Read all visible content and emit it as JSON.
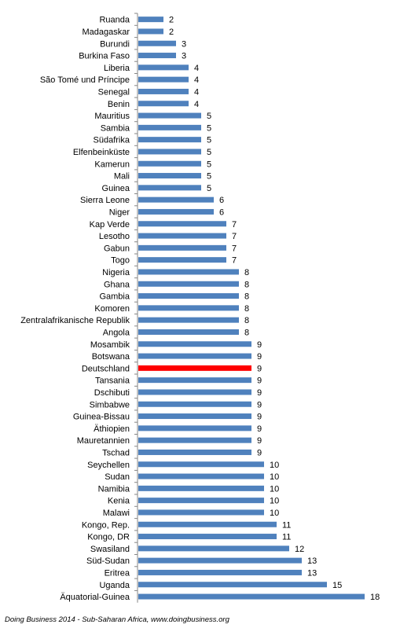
{
  "chart_data": {
    "type": "bar",
    "orientation": "horizontal",
    "title": "",
    "xlabel": "",
    "ylabel": "",
    "grid": false,
    "legend": "none",
    "xlim": [
      0,
      18
    ],
    "categories": [
      "Ruanda",
      "Madagaskar",
      "Burundi",
      "Burkina Faso",
      "Liberia",
      "São Tomé und Príncipe",
      "Senegal",
      "Benin",
      "Mauritius",
      "Sambia",
      "Südafrika",
      "Elfenbeinküste",
      "Kamerun",
      "Mali",
      "Guinea",
      "Sierra Leone",
      "Niger",
      "Kap Verde",
      "Lesotho",
      "Gabun",
      "Togo",
      "Nigeria",
      "Ghana",
      "Gambia",
      "Komoren",
      "Zentralafrikanische Republik",
      "Angola",
      "Mosambik",
      "Botswana",
      "Deutschland",
      "Tansania",
      "Dschibuti",
      "Simbabwe",
      "Guinea-Bissau",
      "Äthiopien",
      "Mauretannien",
      "Tschad",
      "Seychellen",
      "Sudan",
      "Namibia",
      "Kenia",
      "Malawi",
      "Kongo, Rep.",
      "Kongo, DR",
      "Swasiland",
      "Süd-Sudan",
      "Eritrea",
      "Uganda",
      "Äquatorial-Guinea"
    ],
    "values": [
      2,
      2,
      3,
      3,
      4,
      4,
      4,
      4,
      5,
      5,
      5,
      5,
      5,
      5,
      5,
      6,
      6,
      7,
      7,
      7,
      7,
      8,
      8,
      8,
      8,
      8,
      8,
      9,
      9,
      9,
      9,
      9,
      9,
      9,
      9,
      9,
      9,
      10,
      10,
      10,
      10,
      10,
      11,
      11,
      12,
      13,
      13,
      15,
      18
    ],
    "bar_color": "#4F81BD",
    "highlight": {
      "category": "Deutschland",
      "color": "#FF0000"
    }
  },
  "source": "Doing Business 2014 - Sub-Saharan Africa, www.doingbusiness.org"
}
